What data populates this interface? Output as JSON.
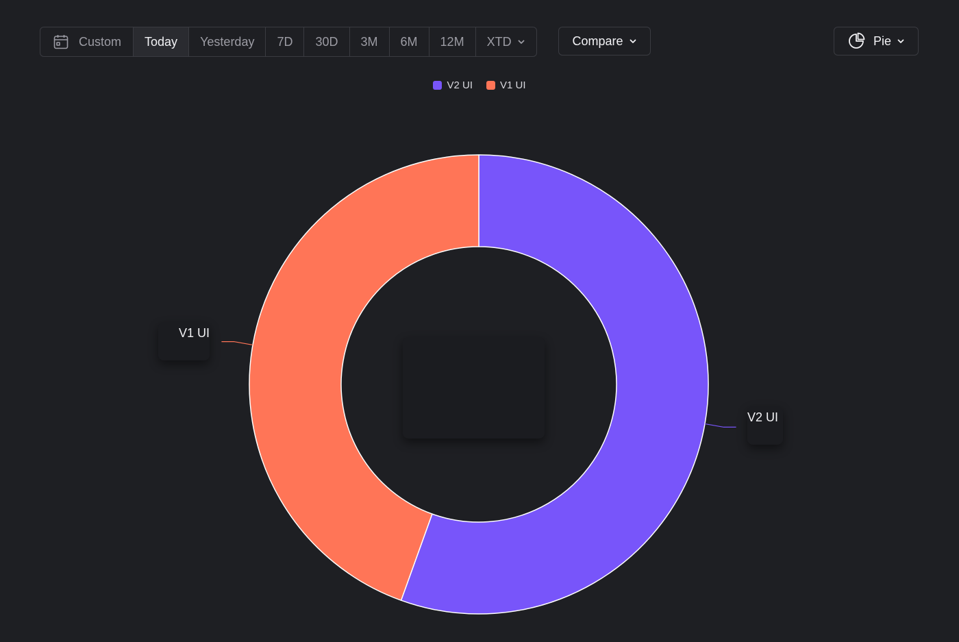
{
  "toolbar": {
    "custom_label": "Custom",
    "ranges": [
      "Today",
      "Yesterday",
      "7D",
      "30D",
      "3M",
      "6M",
      "12M"
    ],
    "xtd_label": "XTD",
    "active_range": "Today",
    "compare_label": "Compare",
    "chart_type_label": "Pie"
  },
  "colors": {
    "series_v2": "#7855fa",
    "series_v1": "#ff7557",
    "background": "#1e1f23"
  },
  "icons": {
    "calendar": "calendar-icon",
    "chevron": "chevron-down-icon",
    "pie": "pie-chart-icon"
  },
  "chart_data": {
    "type": "pie",
    "donut": true,
    "title": "",
    "legend_position": "top-center",
    "series": [
      {
        "name": "V2 UI",
        "value": 55.5,
        "color": "#7855fa"
      },
      {
        "name": "V1 UI",
        "value": 44.5,
        "color": "#ff7557"
      }
    ]
  }
}
